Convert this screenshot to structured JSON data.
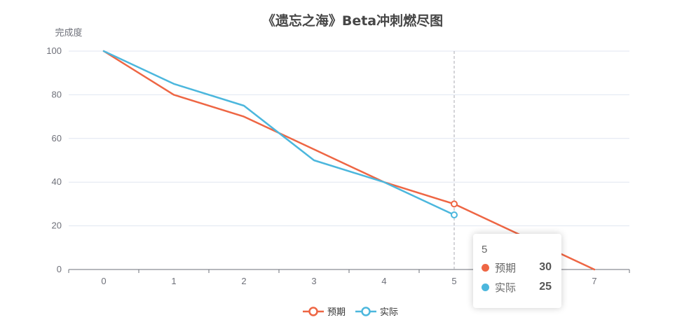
{
  "chart_data": {
    "type": "line",
    "title": "《遗忘之海》Beta冲刺燃尽图",
    "ylabel": "完成度",
    "xlabel": "",
    "categories": [
      "0",
      "1",
      "2",
      "3",
      "4",
      "5",
      "6",
      "7"
    ],
    "ylim": [
      0,
      100
    ],
    "yticks": [
      0,
      20,
      40,
      60,
      80,
      100
    ],
    "grid": true,
    "legend_position": "bottom-center",
    "series": [
      {
        "name": "预期",
        "color": "#ee6644",
        "values": [
          100,
          80,
          70,
          55,
          40,
          30,
          15,
          0
        ]
      },
      {
        "name": "实际",
        "color": "#4cb7dd",
        "values": [
          100,
          85,
          75,
          50,
          40,
          25,
          null,
          null
        ]
      }
    ],
    "tooltip": {
      "title": "5",
      "rows": [
        {
          "name": "预期",
          "value": "30",
          "color": "#ee6644"
        },
        {
          "name": "实际",
          "value": "25",
          "color": "#4cb7dd"
        }
      ]
    }
  }
}
